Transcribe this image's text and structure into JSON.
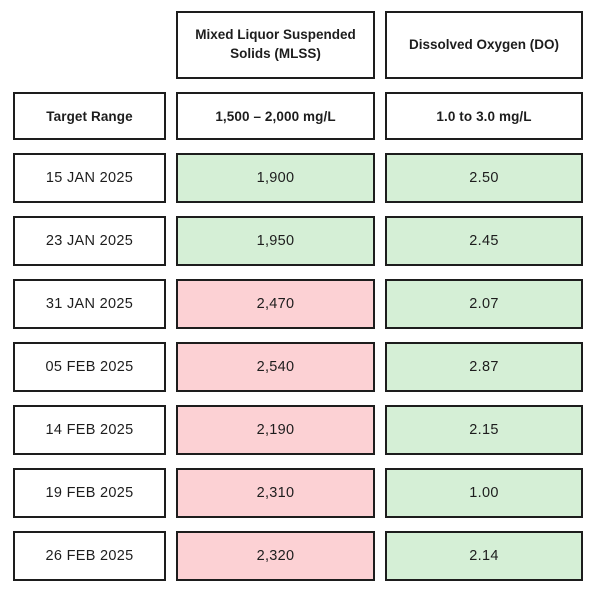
{
  "colors": {
    "border": "#1d1d1d",
    "text": "#1d1d1d",
    "in_range_bg": "#d5efd6",
    "out_of_range_bg": "#fcd1d4"
  },
  "header": {
    "mlss_label": "Mixed Liquor Suspended Solids (MLSS)",
    "do_label": "Dissolved Oxygen (DO)"
  },
  "target_range": {
    "label": "Target Range",
    "mlss": "1,500 – 2,000 mg/L",
    "do": "1.0 to 3.0 mg/L"
  },
  "rows": [
    {
      "date": "15 JAN 2025",
      "mlss": "1,900",
      "mlss_status": "in_range",
      "do": "2.50",
      "do_status": "in_range"
    },
    {
      "date": "23 JAN 2025",
      "mlss": "1,950",
      "mlss_status": "in_range",
      "do": "2.45",
      "do_status": "in_range"
    },
    {
      "date": "31 JAN 2025",
      "mlss": "2,470",
      "mlss_status": "out_of_range",
      "do": "2.07",
      "do_status": "in_range"
    },
    {
      "date": "05 FEB 2025",
      "mlss": "2,540",
      "mlss_status": "out_of_range",
      "do": "2.87",
      "do_status": "in_range"
    },
    {
      "date": "14 FEB 2025",
      "mlss": "2,190",
      "mlss_status": "out_of_range",
      "do": "2.15",
      "do_status": "in_range"
    },
    {
      "date": "19 FEB 2025",
      "mlss": "2,310",
      "mlss_status": "out_of_range",
      "do": "1.00",
      "do_status": "in_range"
    },
    {
      "date": "26 FEB 2025",
      "mlss": "2,320",
      "mlss_status": "out_of_range",
      "do": "2.14",
      "do_status": "in_range"
    }
  ],
  "chart_data": {
    "type": "table",
    "columns": [
      "",
      "Mixed Liquor Suspended Solids (MLSS)",
      "Dissolved Oxygen (DO)"
    ],
    "target_range_row": [
      "Target Range",
      "1,500 – 2,000 mg/L",
      "1.0 to 3.0 mg/L"
    ],
    "rows": [
      [
        "15 JAN 2025",
        1900,
        2.5
      ],
      [
        "23 JAN 2025",
        1950,
        2.45
      ],
      [
        "31 JAN 2025",
        2470,
        2.07
      ],
      [
        "05 FEB 2025",
        2540,
        2.87
      ],
      [
        "14 FEB 2025",
        2190,
        2.15
      ],
      [
        "19 FEB 2025",
        2310,
        1.0
      ],
      [
        "26 FEB 2025",
        2320,
        2.14
      ]
    ],
    "cell_status": {
      "mlss": [
        "in_range",
        "in_range",
        "out_of_range",
        "out_of_range",
        "out_of_range",
        "out_of_range",
        "out_of_range"
      ],
      "do": [
        "in_range",
        "in_range",
        "in_range",
        "in_range",
        "in_range",
        "in_range",
        "in_range"
      ]
    },
    "status_legend": {
      "in_range_color": "#d5efd6",
      "out_of_range_color": "#fcd1d4"
    }
  }
}
